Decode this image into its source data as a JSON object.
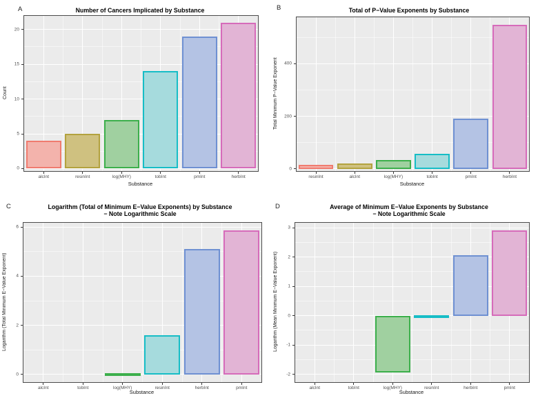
{
  "figure": {
    "background": "#ffffff",
    "panel_background": "#ebebeb",
    "grid_major_color": "#ffffff",
    "grid_minor_color": "#f5f5f5",
    "panel_border_color": "#4a4a4a",
    "tick_label_color": "#4d4d4d",
    "axis_title_color": "#111111",
    "title_color": "#000000"
  },
  "palette": [
    {
      "name": "salmon",
      "stroke": "#F07B6F",
      "fill": "#F3B3AC"
    },
    {
      "name": "khaki",
      "stroke": "#B3A23E",
      "fill": "#CFC180"
    },
    {
      "name": "green",
      "stroke": "#3CAF4B",
      "fill": "#A0D0A0"
    },
    {
      "name": "cyan",
      "stroke": "#16BDC6",
      "fill": "#A6DBDD"
    },
    {
      "name": "blue",
      "stroke": "#6E90D2",
      "fill": "#B4C3E4"
    },
    {
      "name": "pink",
      "stroke": "#D66BBA",
      "fill": "#E2B4D5"
    }
  ],
  "chart_data": [
    {
      "panel_label": "A",
      "type": "bar",
      "title": "Number of Cancers Implicated by Substance",
      "title_line2": "",
      "xlabel": "Substance",
      "ylabel": "Count",
      "categories": [
        "alcInt",
        "resinInt",
        "log(MHY)",
        "tobInt",
        "pmInt",
        "herbInt"
      ],
      "values": [
        4,
        5,
        7,
        14,
        19,
        21
      ],
      "yticks": [
        0,
        5,
        10,
        15,
        20
      ],
      "ylim": [
        -0.35,
        21.95
      ],
      "grid": "on",
      "legend": "none"
    },
    {
      "panel_label": "B",
      "type": "bar",
      "title": "Total of P−Value Exponents by Substance",
      "title_line2": "",
      "xlabel": "Substance",
      "ylabel": "Total Minimum P−Value Exponent",
      "categories": [
        "resinInt",
        "alcInt",
        "log(MHY)",
        "tobInt",
        "pmInt",
        "herbInt"
      ],
      "values": [
        15,
        20,
        33,
        58,
        190,
        548
      ],
      "yticks": [
        0,
        200,
        400
      ],
      "ylim": [
        -8,
        576
      ],
      "grid": "on",
      "legend": "none"
    },
    {
      "panel_label": "C",
      "type": "bar",
      "title": "Logarithm (Total of Minimum E−Value Exponents) by Substance",
      "title_line2": "− Note Logarithmic Scale",
      "xlabel": "Substance",
      "ylabel": "Logarithm (Total Minimum E−Value Exponent)",
      "categories": [
        "alcInt",
        "tobInt",
        "log(MHY)",
        "resinInt",
        "herbInt",
        "pmInt"
      ],
      "values": [
        0,
        0,
        0.05,
        1.6,
        5.1,
        5.85
      ],
      "yticks": [
        0,
        2,
        4,
        6
      ],
      "ylim": [
        -0.31,
        6.17
      ],
      "grid": "on",
      "legend": "none"
    },
    {
      "panel_label": "D",
      "type": "bar",
      "title": "Average of Minimum E−Value Exponents by Substance",
      "title_line2": "− Note Logarithmic Scale",
      "xlabel": "Substance",
      "ylabel": "Logarithm (Mean Minimum E−Value Exponent)",
      "categories": [
        "alcInt",
        "tobInt",
        "log(MHY)",
        "resinInt",
        "herbInt",
        "pmInt"
      ],
      "values": [
        0,
        0,
        -1.95,
        0.02,
        2.07,
        2.9
      ],
      "yticks": [
        -2,
        -1,
        0,
        1,
        2,
        3
      ],
      "ylim": [
        -2.27,
        3.17
      ],
      "grid": "on",
      "legend": "none"
    }
  ]
}
